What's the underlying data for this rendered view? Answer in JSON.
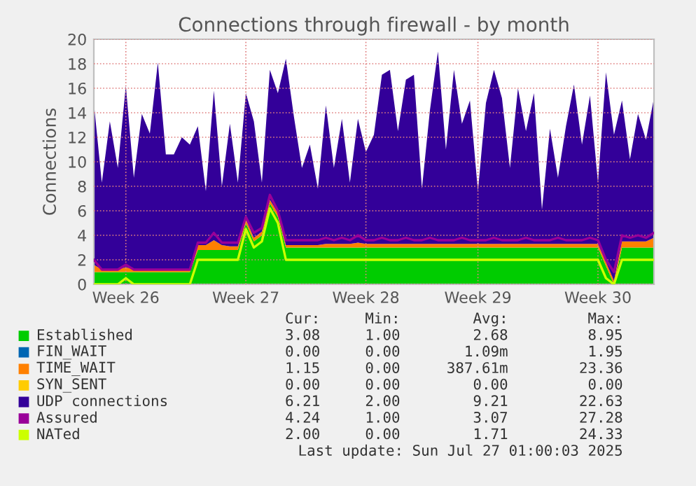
{
  "chart_data": {
    "type": "area",
    "stacked": true,
    "title": "Connections through firewall - by month",
    "ylabel": "Connections",
    "categories": [
      null,
      null,
      null,
      null,
      "Week 26",
      null,
      null,
      null,
      null,
      null,
      null,
      null,
      null,
      null,
      null,
      null,
      null,
      null,
      null,
      "Week 27",
      null,
      null,
      null,
      null,
      null,
      null,
      null,
      null,
      null,
      null,
      null,
      null,
      null,
      null,
      "Week 28",
      null,
      null,
      null,
      null,
      null,
      null,
      null,
      null,
      null,
      null,
      null,
      null,
      null,
      "Week 29",
      null,
      null,
      null,
      null,
      null,
      null,
      null,
      null,
      null,
      null,
      null,
      null,
      null,
      null,
      "Week 30",
      null,
      null,
      null,
      null,
      null,
      null,
      null
    ],
    "ylim": [
      0,
      20
    ],
    "yticks": [
      0,
      2,
      4,
      6,
      8,
      10,
      12,
      14,
      16,
      18,
      20
    ],
    "grid": true,
    "legend": "bottom",
    "series": [
      {
        "name": "Established",
        "color": "#00cc00",
        "values": [
          1,
          1,
          1,
          1,
          1,
          1,
          1,
          1,
          1,
          1,
          1,
          1,
          1,
          2.8,
          2.8,
          2.8,
          2.8,
          2.8,
          2.8,
          5.0,
          3.5,
          4.0,
          6.6,
          5.5,
          3,
          3,
          3,
          3,
          3,
          3,
          3,
          3,
          3,
          3,
          3,
          3,
          3,
          3,
          3,
          3,
          3,
          3,
          3,
          3,
          3,
          3,
          3,
          3,
          3,
          3,
          3,
          3,
          3,
          3,
          3,
          3,
          3,
          3,
          3,
          3,
          3,
          3,
          3,
          3,
          1.5,
          0,
          3,
          3,
          3,
          3,
          3
        ]
      },
      {
        "name": "FIN_WAIT",
        "color": "#0066b3",
        "values": [
          null,
          null,
          null,
          null,
          null,
          null,
          null,
          null,
          null,
          null,
          null,
          null,
          null,
          null,
          null,
          null,
          null,
          null,
          null,
          null,
          null,
          null,
          null,
          null,
          null,
          null,
          null,
          null,
          null,
          null,
          null,
          null,
          null,
          null,
          null,
          null,
          null,
          null,
          null,
          null,
          null,
          null,
          null,
          null,
          null,
          null,
          null,
          null,
          null,
          null,
          null,
          null,
          null,
          null,
          null,
          null,
          null,
          null,
          null,
          null,
          null,
          null,
          null,
          null,
          null,
          null,
          null,
          null,
          null,
          null,
          null
        ]
      },
      {
        "name": "TIME_WAIT",
        "color": "#ff8000",
        "values": [
          0.6,
          0.2,
          0.2,
          0.2,
          0.4,
          0.2,
          0.2,
          0.2,
          0.2,
          0.2,
          0.2,
          0.2,
          0.2,
          0.4,
          0.4,
          0.8,
          0.4,
          0.3,
          0.3,
          0.3,
          0.3,
          0.3,
          0.3,
          0.3,
          0.2,
          0.2,
          0.2,
          0.2,
          0.2,
          0.3,
          0.3,
          0.3,
          0.3,
          0.4,
          0.3,
          0.3,
          0.3,
          0.3,
          0.3,
          0.3,
          0.3,
          0.3,
          0.3,
          0.3,
          0.3,
          0.3,
          0.3,
          0.3,
          0.3,
          0.3,
          0.3,
          0.3,
          0.3,
          0.3,
          0.3,
          0.3,
          0.3,
          0.3,
          0.3,
          0.3,
          0.3,
          0.3,
          0.3,
          0.3,
          0.3,
          0.3,
          0.5,
          0.5,
          0.5,
          0.5,
          0.8
        ]
      },
      {
        "name": "SYN_SENT",
        "color": "#ffcc00",
        "values": [
          null,
          null,
          null,
          null,
          null,
          null,
          null,
          null,
          null,
          null,
          null,
          null,
          null,
          null,
          null,
          null,
          null,
          null,
          null,
          null,
          null,
          null,
          null,
          null,
          null,
          null,
          null,
          null,
          null,
          null,
          null,
          null,
          null,
          null,
          null,
          null,
          null,
          null,
          null,
          null,
          null,
          null,
          null,
          null,
          null,
          null,
          null,
          null,
          null,
          null,
          null,
          null,
          null,
          null,
          null,
          null,
          null,
          null,
          null,
          null,
          null,
          null,
          null,
          null,
          null,
          null,
          null,
          null,
          null,
          null,
          null
        ]
      },
      {
        "name": "UDP connections",
        "color": "#330099",
        "values": [
          13.2,
          7.1,
          12.1,
          8.3,
          14.8,
          7.5,
          12.7,
          11.1,
          16.9,
          9.4,
          9.4,
          10.8,
          10.2,
          9.7,
          4.4,
          12.2,
          4.8,
          10.0,
          5.2,
          10.3,
          9.5,
          4.0,
          10.6,
          9.8,
          15.2,
          10.5,
          6.3,
          8.2,
          4.6,
          11.3,
          6.2,
          10.2,
          5.0,
          10.1,
          7.5,
          8.9,
          13.8,
          14.2,
          9.2,
          13.4,
          13.8,
          4.5,
          10.9,
          15.7,
          7.7,
          14.2,
          9.8,
          11.7,
          4.3,
          11.5,
          14.2,
          11.9,
          6.2,
          12.7,
          9.2,
          12.3,
          2.8,
          9.4,
          5.4,
          9.6,
          13.0,
          8.1,
          12.1,
          5.0,
          15.5,
          11.9,
          11.5,
          6.7,
          10.4,
          8.3,
          11.4
        ]
      },
      {
        "name": "Assured",
        "type": "line",
        "color": "#990099",
        "values": [
          2.0,
          1.2,
          1.2,
          1.2,
          1.6,
          1.2,
          1.2,
          1.2,
          1.2,
          1.2,
          1.2,
          1.2,
          1.2,
          3.4,
          3.4,
          4.2,
          3.4,
          3.4,
          3.4,
          5.5,
          4.2,
          4.6,
          7.3,
          6.0,
          3.6,
          3.6,
          3.6,
          3.6,
          3.6,
          3.8,
          3.6,
          3.8,
          3.6,
          4.0,
          3.6,
          3.6,
          3.8,
          3.6,
          3.6,
          3.8,
          3.6,
          3.6,
          3.8,
          3.6,
          3.6,
          3.6,
          3.8,
          3.6,
          3.6,
          3.6,
          3.8,
          3.6,
          3.6,
          3.6,
          3.8,
          3.6,
          3.6,
          3.6,
          3.8,
          3.6,
          3.6,
          3.6,
          3.8,
          3.6,
          2.0,
          1.0,
          4.0,
          3.8,
          4.0,
          3.8,
          4.2
        ]
      },
      {
        "name": "NATed",
        "type": "line",
        "color": "#ccff00",
        "values": [
          0,
          0,
          0,
          0,
          0.5,
          0,
          0,
          0,
          0,
          0,
          0,
          0,
          0,
          2.0,
          2.0,
          2.0,
          2.0,
          2.0,
          2.0,
          4.5,
          3.0,
          3.5,
          6.2,
          5.0,
          2.0,
          2.0,
          2.0,
          2.0,
          2.0,
          2.0,
          2.0,
          2.0,
          2.0,
          2.0,
          2.0,
          2.0,
          2.0,
          2.0,
          2.0,
          2.0,
          2.0,
          2.0,
          2.0,
          2.0,
          2.0,
          2.0,
          2.0,
          2.0,
          2.0,
          2.0,
          2.0,
          2.0,
          2.0,
          2.0,
          2.0,
          2.0,
          2.0,
          2.0,
          2.0,
          2.0,
          2.0,
          2.0,
          2.0,
          2.0,
          0.5,
          0,
          2.0,
          2.0,
          2.0,
          2.0,
          2.0
        ]
      }
    ],
    "annotations": [
      "Cur:",
      "Min:",
      "Avg:",
      "Max:",
      "3.08",
      "1.00",
      "2.68",
      "8.95",
      "0.00",
      "0.00",
      "1.09m",
      "1.95",
      "1.15",
      "0.00",
      "387.61m",
      "23.36",
      "0.00",
      "0.00",
      "0.00",
      "0.00",
      "6.21",
      "2.00",
      "9.21",
      "22.63",
      "4.24",
      "1.00",
      "3.07",
      "27.28",
      "2.00",
      "0.00",
      "1.71",
      "24.33",
      "Last update: Sun Jul 27 01:00:03 2025"
    ]
  }
}
